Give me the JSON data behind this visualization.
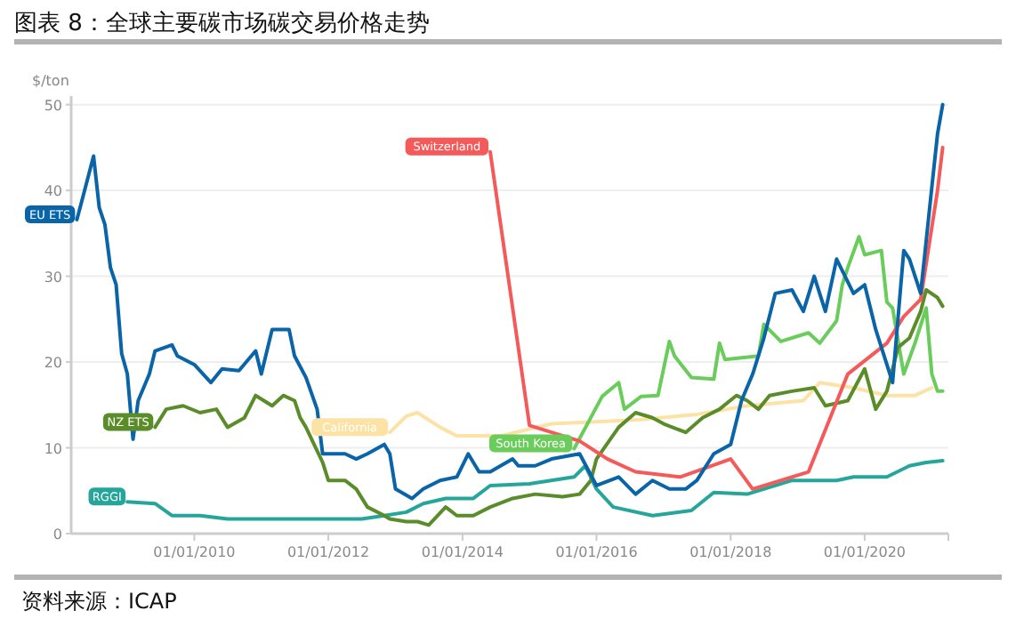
{
  "chart_data": {
    "type": "line",
    "title": "图表 8：全球主要碳市场碳交易价格走势",
    "ylabel": "$/ton",
    "annotations": [
      "资料来源：ICAP"
    ],
    "xlim": [
      "2008-03",
      "2021-04"
    ],
    "ylim": [
      0,
      51
    ],
    "xticks": [
      {
        "value": "2010-01",
        "label": "01/01/2010"
      },
      {
        "value": "2012-01",
        "label": "01/01/2012"
      },
      {
        "value": "2014-01",
        "label": "01/01/2014"
      },
      {
        "value": "2016-01",
        "label": "01/01/2016"
      },
      {
        "value": "2018-01",
        "label": "01/01/2018"
      },
      {
        "value": "2020-01",
        "label": "01/01/2020"
      }
    ],
    "yticks": [
      0,
      10,
      20,
      30,
      40,
      50
    ],
    "grid": "y",
    "series": [
      {
        "name": "California",
        "color": "#fde2a6",
        "x": [
          "2012-12",
          "2013-03",
          "2013-05",
          "2013-09",
          "2013-12",
          "2014-08",
          "2015-05",
          "2015-12",
          "2016-09",
          "2017-07",
          "2018-04",
          "2019-02",
          "2019-05",
          "2019-11",
          "2020-05",
          "2020-10",
          "2021-01"
        ],
        "values": [
          11.8,
          13.7,
          14.1,
          12.4,
          11.4,
          11.4,
          12.8,
          13,
          13.3,
          13.9,
          14.9,
          15.5,
          17.6,
          17,
          16.1,
          16.1,
          17
        ]
      },
      {
        "name": "RGGI",
        "color": "#26a69a",
        "x": [
          "2009-01",
          "2009-06",
          "2009-09",
          "2010-02",
          "2010-07",
          "2011-03",
          "2012-07",
          "2012-11",
          "2013-03",
          "2013-06",
          "2013-10",
          "2014-03",
          "2014-06",
          "2015-01",
          "2015-09",
          "2015-11",
          "2016-01",
          "2016-04",
          "2016-11",
          "2017-06",
          "2017-10",
          "2018-04",
          "2018-12",
          "2019-08",
          "2019-11",
          "2020-05",
          "2020-09",
          "2020-12",
          "2021-03"
        ],
        "values": [
          3.7,
          3.5,
          2.1,
          2.1,
          1.7,
          1.7,
          1.7,
          2.1,
          2.5,
          3.5,
          4.1,
          4.1,
          5.6,
          5.8,
          6.6,
          7.9,
          5.2,
          3.1,
          2.1,
          2.7,
          4.8,
          4.6,
          6.2,
          6.2,
          6.6,
          6.6,
          7.9,
          8.3,
          8.5
        ]
      },
      {
        "name": "South Korea",
        "color": "#6acc5a",
        "x": [
          "2015-09",
          "2016-02",
          "2016-05",
          "2016-06",
          "2016-09",
          "2016-12",
          "2017-02",
          "2017-03",
          "2017-06",
          "2017-10",
          "2017-11",
          "2017-12",
          "2018-06",
          "2018-07",
          "2018-10",
          "2019-03",
          "2019-05",
          "2019-08",
          "2019-09",
          "2019-10",
          "2019-12",
          "2020-01",
          "2020-04",
          "2020-05",
          "2020-06",
          "2020-08",
          "2020-10",
          "2020-12",
          "2021-01",
          "2021-02",
          "2021-03"
        ],
        "values": [
          9.9,
          16,
          17.6,
          14.5,
          16,
          16.1,
          22.4,
          20.7,
          18.2,
          18,
          22.2,
          20.3,
          20.7,
          24.4,
          22.4,
          23.4,
          22.2,
          24.8,
          29,
          31,
          34.6,
          32.5,
          33,
          27,
          26.3,
          18.6,
          22.2,
          26.3,
          18.6,
          16.6,
          16.6
        ]
      },
      {
        "name": "NZ ETS",
        "color": "#5b8c2a",
        "x": [
          "2009-06",
          "2009-08",
          "2009-11",
          "2010-02",
          "2010-05",
          "2010-07",
          "2010-10",
          "2010-12",
          "2011-03",
          "2011-05",
          "2011-07",
          "2011-08",
          "2011-09",
          "2011-12",
          "2012-01",
          "2012-04",
          "2012-06",
          "2012-08",
          "2012-11",
          "2012-12",
          "2013-03",
          "2013-05",
          "2013-07",
          "2013-10",
          "2013-12",
          "2014-03",
          "2014-06",
          "2014-10",
          "2015-02",
          "2015-07",
          "2015-10",
          "2015-12",
          "2016-01",
          "2016-05",
          "2016-08",
          "2016-11",
          "2017-01",
          "2017-05",
          "2017-08",
          "2017-11",
          "2018-02",
          "2018-04",
          "2018-06",
          "2018-08",
          "2018-12",
          "2019-04",
          "2019-06",
          "2019-10",
          "2020-01",
          "2020-03",
          "2020-05",
          "2020-07",
          "2020-09",
          "2020-11",
          "2020-12",
          "2021-02",
          "2021-03"
        ],
        "values": [
          12.4,
          14.5,
          14.9,
          14.1,
          14.5,
          12.4,
          13.5,
          16.1,
          14.9,
          16.1,
          15.5,
          13.5,
          12.4,
          8.3,
          6.2,
          6.2,
          5.2,
          3.1,
          2.1,
          1.7,
          1.4,
          1.4,
          1,
          3.1,
          2.1,
          2.1,
          3.1,
          4.1,
          4.6,
          4.3,
          4.6,
          6.2,
          8.7,
          12.4,
          14.1,
          13.5,
          12.8,
          11.8,
          13.5,
          14.5,
          16.1,
          15.5,
          14.5,
          16.1,
          16.6,
          17,
          14.9,
          15.5,
          19.2,
          14.5,
          16.6,
          21.7,
          22.8,
          25.9,
          28.4,
          27.5,
          26.5
        ]
      },
      {
        "name": "Switzerland",
        "color": "#f55a5a",
        "x": [
          "2014-06",
          "2015-01",
          "2015-10",
          "2016-03",
          "2016-08",
          "2017-04",
          "2018-01",
          "2018-05",
          "2019-03",
          "2019-10",
          "2020-05",
          "2020-08",
          "2020-11",
          "2021-02",
          "2021-03"
        ],
        "values": [
          44.5,
          12.6,
          10.8,
          8.7,
          7.2,
          6.6,
          8.7,
          5.2,
          7.2,
          18.6,
          22.2,
          25.3,
          27.3,
          40,
          45
        ]
      },
      {
        "name": "EU ETS",
        "color": "#0a64a8",
        "x": [
          "2008-04",
          "2008-05",
          "2008-07",
          "2008-08",
          "2008-09",
          "2008-10",
          "2008-11",
          "2008-12",
          "2009-01",
          "2009-02",
          "2009-03",
          "2009-05",
          "2009-06",
          "2009-09",
          "2009-10",
          "2010-01",
          "2010-04",
          "2010-06",
          "2010-09",
          "2010-12",
          "2011-01",
          "2011-03",
          "2011-06",
          "2011-07",
          "2011-09",
          "2011-11",
          "2011-12",
          "2012-04",
          "2012-06",
          "2012-08",
          "2012-11",
          "2012-12",
          "2013-01",
          "2013-04",
          "2013-06",
          "2013-09",
          "2013-12",
          "2014-02",
          "2014-04",
          "2014-06",
          "2014-10",
          "2014-11",
          "2015-02",
          "2015-05",
          "2015-10",
          "2016-01",
          "2016-05",
          "2016-08",
          "2016-11",
          "2017-02",
          "2017-05",
          "2017-07",
          "2017-10",
          "2018-01",
          "2018-03",
          "2018-05",
          "2018-07",
          "2018-09",
          "2018-12",
          "2019-02",
          "2019-04",
          "2019-06",
          "2019-08",
          "2019-11",
          "2020-01",
          "2020-03",
          "2020-05",
          "2020-06",
          "2020-08",
          "2020-09",
          "2020-11",
          "2021-01",
          "2021-02",
          "2021-03"
        ],
        "values": [
          36.6,
          39,
          44,
          38,
          36,
          31,
          29,
          21,
          18.6,
          11,
          15.5,
          18.6,
          21.3,
          22,
          20.7,
          19.7,
          17.6,
          19.2,
          19,
          21.3,
          18.6,
          23.8,
          23.8,
          20.7,
          18.2,
          14.5,
          9.3,
          9.3,
          8.7,
          9.3,
          10.4,
          9.3,
          5.2,
          4.1,
          5.2,
          6.2,
          6.6,
          9.3,
          7.2,
          7.2,
          8.7,
          7.9,
          7.9,
          8.7,
          9.3,
          5.6,
          6.6,
          4.6,
          6.2,
          5.2,
          5.2,
          6.2,
          9.3,
          10.4,
          15.5,
          18.6,
          22.8,
          28,
          28.4,
          25.9,
          30,
          25.9,
          32,
          28,
          29,
          23.8,
          19.7,
          17.6,
          33,
          32,
          28,
          40.4,
          46.6,
          50
        ]
      }
    ]
  }
}
